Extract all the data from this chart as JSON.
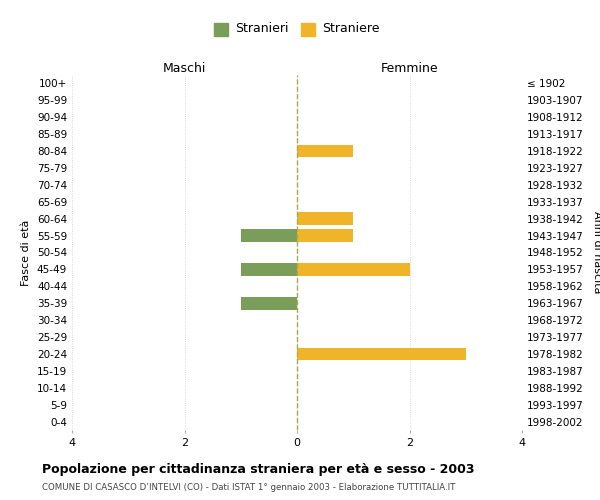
{
  "age_groups": [
    "100+",
    "95-99",
    "90-94",
    "85-89",
    "80-84",
    "75-79",
    "70-74",
    "65-69",
    "60-64",
    "55-59",
    "50-54",
    "45-49",
    "40-44",
    "35-39",
    "30-34",
    "25-29",
    "20-24",
    "15-19",
    "10-14",
    "5-9",
    "0-4"
  ],
  "birth_years": [
    "≤ 1902",
    "1903-1907",
    "1908-1912",
    "1913-1917",
    "1918-1922",
    "1923-1927",
    "1928-1932",
    "1933-1937",
    "1938-1942",
    "1943-1947",
    "1948-1952",
    "1953-1957",
    "1958-1962",
    "1963-1967",
    "1968-1972",
    "1973-1977",
    "1978-1982",
    "1983-1987",
    "1988-1992",
    "1993-1997",
    "1998-2002"
  ],
  "maschi": [
    0,
    0,
    0,
    0,
    0,
    0,
    0,
    0,
    0,
    1,
    0,
    1,
    0,
    1,
    0,
    0,
    0,
    0,
    0,
    0,
    0
  ],
  "femmine": [
    0,
    0,
    0,
    0,
    1,
    0,
    0,
    0,
    1,
    1,
    0,
    2,
    0,
    0,
    0,
    0,
    3,
    0,
    0,
    0,
    0
  ],
  "maschi_color": "#7a9e5a",
  "femmine_color": "#f0b429",
  "background_color": "#ffffff",
  "grid_color": "#cccccc",
  "center_line_color": "#aaa855",
  "xlim": 4,
  "title": "Popolazione per cittadinanza straniera per età e sesso - 2003",
  "subtitle": "COMUNE DI CASASCO D’INTELVI (CO) - Dati ISTAT 1° gennaio 2003 - Elaborazione TUTTITALIA.IT",
  "ylabel_left": "Fasce di età",
  "ylabel_right": "Anni di nascita",
  "legend_maschi": "Stranieri",
  "legend_femmine": "Straniere",
  "maschi_label": "Maschi",
  "femmine_label": "Femmine",
  "xtick_labels": [
    "4",
    "2",
    "0",
    "2",
    "4"
  ]
}
